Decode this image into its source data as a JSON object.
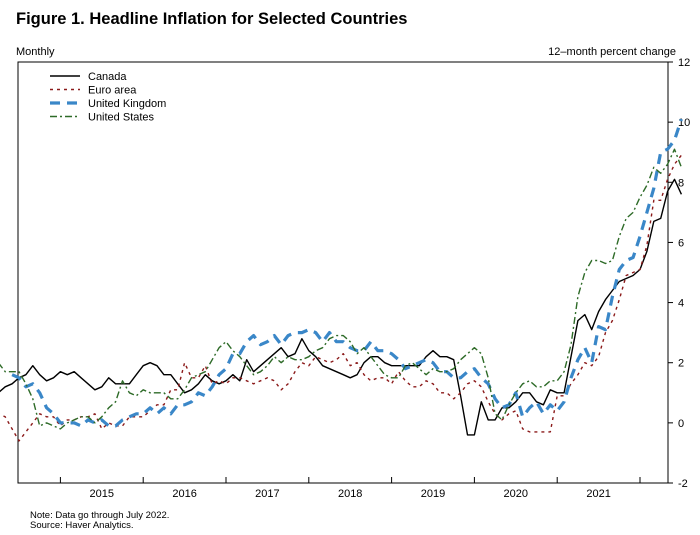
{
  "header": {
    "title": "Figure 1. Headline Inflation for Selected Countries",
    "left_unit": "Monthly",
    "right_unit": "12–month percent change"
  },
  "footer": {
    "note": "Note: Data go through July 2022.",
    "source": "Source: Haver Analytics."
  },
  "chart_data": {
    "type": "line",
    "title": "Figure 1. Headline Inflation for Selected Countries",
    "xlabel": "Monthly",
    "ylabel": "12–month percent change",
    "x_start": "2014-07",
    "x_end": "2022-07",
    "x_tick_labels": [
      "2015",
      "2016",
      "2017",
      "2018",
      "2019",
      "2020",
      "2021",
      "2022"
    ],
    "ylim": [
      -2,
      12
    ],
    "y_ticks": [
      -2,
      0,
      2,
      4,
      6,
      8,
      10,
      12
    ],
    "y_axis_side": "right",
    "grid": false,
    "legend_position": "top-left",
    "series": [
      {
        "name": "Canada",
        "color": "#000000",
        "style": "solid",
        "values": [
          1.0,
          1.0,
          1.0,
          1.3,
          0.8,
          1.0,
          1.1,
          1.2,
          1.3,
          1.2,
          1.0,
          1.0,
          1.0,
          1.0,
          1.2,
          1.3,
          1.5,
          1.6,
          1.9,
          1.6,
          1.4,
          1.5,
          1.7,
          1.6,
          1.7,
          1.5,
          1.3,
          1.1,
          1.2,
          1.5,
          1.3,
          1.3,
          1.3,
          1.6,
          1.9,
          2.0,
          1.9,
          1.6,
          1.6,
          1.3,
          1.0,
          1.1,
          1.3,
          1.6,
          1.4,
          1.3,
          1.4,
          1.6,
          1.4,
          2.1,
          1.7,
          1.9,
          2.1,
          2.3,
          2.5,
          2.2,
          2.3,
          2.8,
          2.4,
          2.2,
          1.9,
          1.8,
          1.7,
          1.6,
          1.5,
          1.6,
          2.0,
          2.2,
          2.2,
          2.0,
          1.9,
          1.9,
          1.9,
          1.9,
          1.9,
          2.2,
          2.4,
          2.2,
          2.2,
          2.1,
          0.9,
          -0.4,
          -0.4,
          0.7,
          0.1,
          0.1,
          0.5,
          0.5,
          0.7,
          1.0,
          1.0,
          0.7,
          0.6,
          1.1,
          1.0,
          1.0,
          2.2,
          3.4,
          3.6,
          3.1,
          3.7,
          4.1,
          4.4,
          4.7,
          4.8,
          4.9,
          5.1,
          5.7,
          6.7,
          6.8,
          7.7,
          8.1,
          7.6
        ]
      },
      {
        "name": "Euro area",
        "color": "#8b1a1a",
        "style": "dotted",
        "values": [
          0.4,
          0.4,
          0.3,
          0.4,
          0.4,
          0.3,
          0.2,
          -0.2,
          -0.6,
          -0.3,
          0.0,
          0.3,
          0.2,
          0.2,
          -0.1,
          0.1,
          0.1,
          0.2,
          0.2,
          0.3,
          -0.2,
          0.0,
          -0.1,
          -0.1,
          0.2,
          0.2,
          0.2,
          0.4,
          0.6,
          0.6,
          1.1,
          1.1,
          2.0,
          1.5,
          1.5,
          1.9,
          1.3,
          1.4,
          1.3,
          1.5,
          1.5,
          1.4,
          1.3,
          1.4,
          1.5,
          1.4,
          1.1,
          1.3,
          1.7,
          2.0,
          1.9,
          2.2,
          2.1,
          2.0,
          2.1,
          2.3,
          1.9,
          2.0,
          1.6,
          1.4,
          1.5,
          1.5,
          1.3,
          1.7,
          1.4,
          1.2,
          1.2,
          1.4,
          1.3,
          1.0,
          1.0,
          0.8,
          1.0,
          1.3,
          1.4,
          1.2,
          0.7,
          0.3,
          0.1,
          0.3,
          0.4,
          -0.2,
          -0.3,
          -0.3,
          -0.3,
          -0.3,
          0.9,
          0.9,
          1.3,
          1.6,
          2.0,
          1.9,
          2.2,
          3.0,
          3.4,
          4.1,
          4.9,
          5.0,
          5.1,
          5.9,
          7.4,
          7.4,
          8.1,
          8.6,
          8.9
        ]
      },
      {
        "name": "United Kingdom",
        "color": "#3a87c8",
        "style": "dashed",
        "values": [
          1.6,
          1.5,
          1.2,
          1.3,
          1.0,
          0.5,
          0.3,
          0.0,
          0.0,
          0.0,
          -0.1,
          0.1,
          0.0,
          0.1,
          -0.1,
          -0.1,
          0.1,
          0.2,
          0.3,
          0.3,
          0.5,
          0.3,
          0.5,
          0.3,
          0.6,
          0.6,
          0.7,
          1.0,
          0.9,
          1.2,
          1.6,
          1.8,
          2.3,
          2.3,
          2.7,
          2.9,
          2.6,
          2.7,
          2.9,
          2.6,
          2.9,
          3.0,
          3.0,
          3.1,
          3.0,
          2.7,
          3.0,
          2.7,
          2.7,
          2.5,
          2.4,
          2.4,
          2.7,
          2.4,
          2.4,
          2.3,
          2.1,
          1.8,
          1.9,
          2.0,
          2.1,
          2.0,
          1.7,
          1.7,
          1.5,
          1.5,
          1.7,
          1.8,
          1.5,
          1.3,
          0.8,
          0.5,
          0.6,
          1.0,
          0.2,
          0.5,
          0.7,
          0.3,
          0.6,
          0.4,
          0.7,
          1.5,
          2.1,
          2.5,
          2.0,
          3.2,
          3.1,
          4.2,
          5.1,
          5.4,
          5.5,
          6.2,
          7.0,
          7.8,
          9.0,
          9.1,
          9.4,
          10.1
        ]
      },
      {
        "name": "United States",
        "color": "#2e6b28",
        "style": "dashdot",
        "values": [
          2.0,
          1.7,
          1.7,
          1.7,
          1.3,
          0.8,
          -0.1,
          0.0,
          -0.1,
          -0.2,
          0.0,
          0.1,
          0.2,
          0.2,
          0.0,
          0.2,
          0.5,
          0.7,
          1.4,
          1.0,
          0.9,
          1.1,
          1.0,
          1.0,
          1.0,
          0.8,
          0.8,
          1.1,
          1.5,
          1.6,
          1.7,
          2.1,
          2.5,
          2.7,
          2.4,
          2.2,
          1.9,
          1.6,
          1.7,
          1.9,
          2.2,
          2.0,
          2.2,
          2.1,
          2.1,
          2.2,
          2.4,
          2.5,
          2.8,
          2.9,
          2.9,
          2.7,
          2.3,
          2.5,
          2.2,
          1.9,
          1.6,
          1.5,
          1.5,
          1.9,
          2.0,
          1.8,
          1.6,
          1.8,
          1.7,
          1.7,
          1.8,
          2.1,
          2.3,
          2.5,
          2.3,
          1.5,
          0.3,
          0.1,
          0.6,
          1.0,
          1.3,
          1.4,
          1.2,
          1.2,
          1.4,
          1.4,
          1.7,
          2.6,
          4.2,
          5.0,
          5.4,
          5.4,
          5.3,
          5.4,
          6.2,
          6.8,
          7.0,
          7.5,
          7.9,
          8.5,
          8.3,
          8.6,
          9.1,
          8.5
        ]
      }
    ]
  }
}
